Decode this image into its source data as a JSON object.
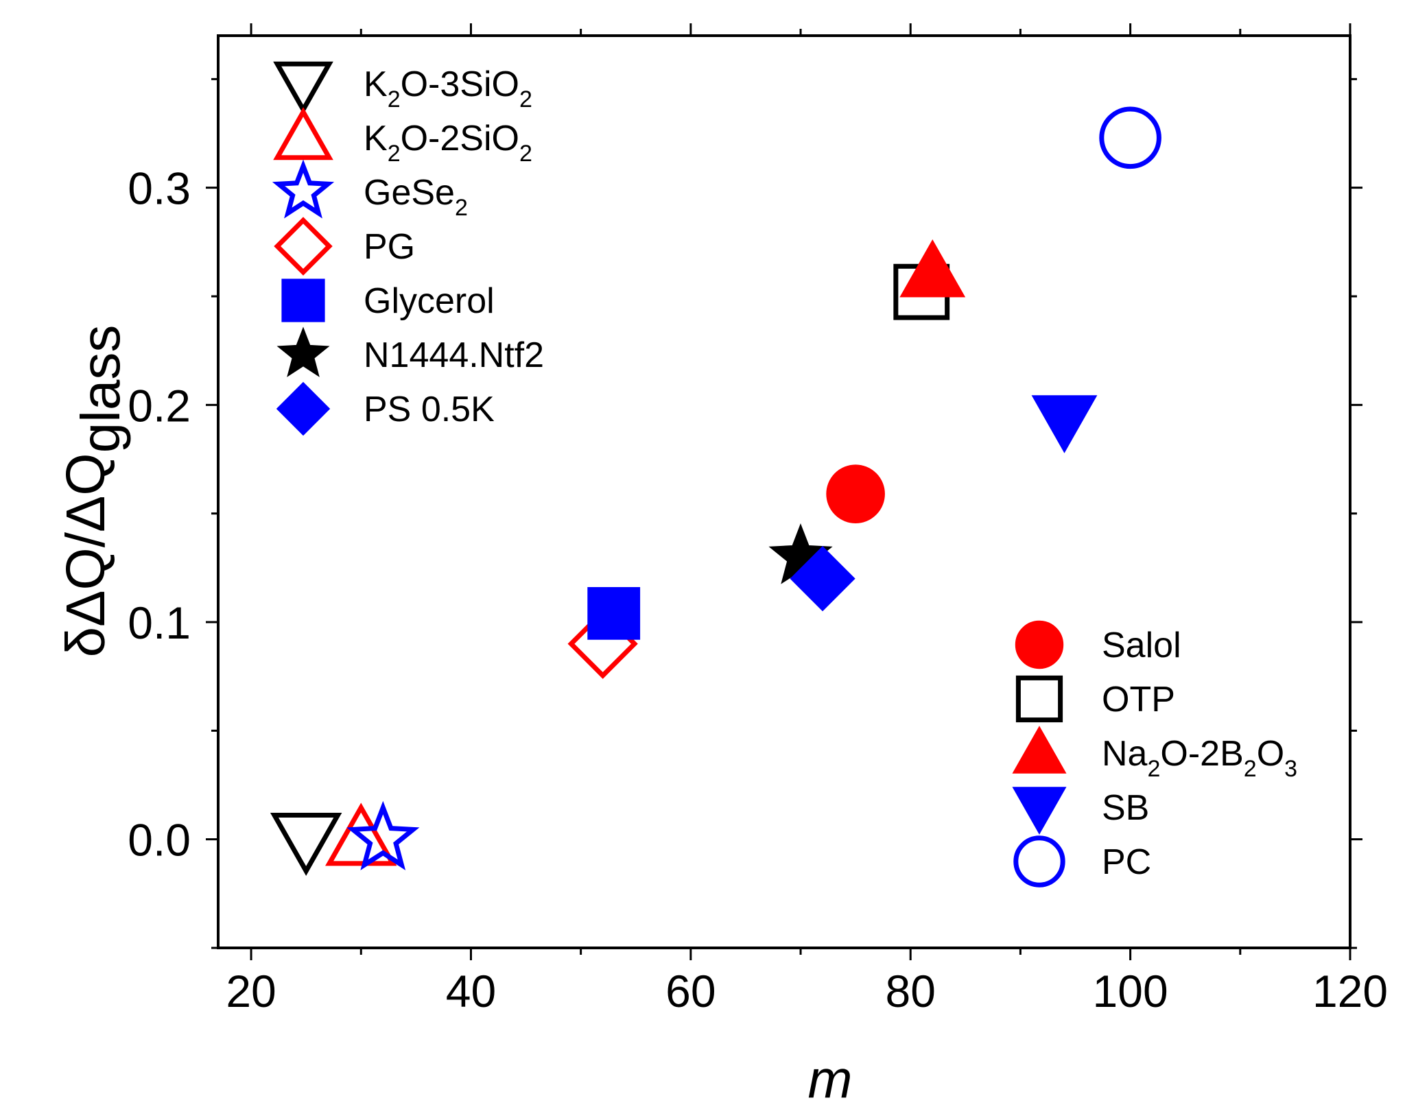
{
  "chart_data": {
    "type": "scatter",
    "xlabel": "m",
    "ylabel": "δΔQ/ΔQ",
    "ylabel_subscript": "glass",
    "xlim": [
      17,
      120
    ],
    "ylim": [
      -0.05,
      0.37
    ],
    "grid": false,
    "x_ticks": [
      20,
      40,
      60,
      80,
      100,
      120
    ],
    "x_tick_labels": [
      "20",
      "40",
      "60",
      "80",
      "100",
      "120"
    ],
    "x_minor_ticks": [
      30,
      50,
      70,
      90,
      110
    ],
    "y_ticks": [
      0.0,
      0.1,
      0.2,
      0.3
    ],
    "y_tick_labels": [
      "0.0",
      "0.1",
      "0.2",
      "0.3"
    ],
    "y_minor_ticks": [
      -0.05,
      0.05,
      0.15,
      0.25,
      0.35
    ],
    "series": [
      {
        "key": "k2o3sio2",
        "name": "K2O-3SiO2",
        "label_parts": [
          [
            "K",
            ""
          ],
          [
            "2",
            "sub"
          ],
          [
            "O-3SiO",
            ""
          ],
          [
            "2",
            "sub"
          ]
        ],
        "marker": "triangle-down",
        "fill": "none",
        "color": "#000000",
        "legend": "left",
        "points": [
          {
            "x": 25,
            "y": 0.0
          }
        ]
      },
      {
        "key": "k2o2sio2",
        "name": "K2O-2SiO2",
        "label_parts": [
          [
            "K",
            ""
          ],
          [
            "2",
            "sub"
          ],
          [
            "O-2SiO",
            ""
          ],
          [
            "2",
            "sub"
          ]
        ],
        "marker": "triangle-up",
        "fill": "none",
        "color": "#ff0000",
        "legend": "left",
        "points": [
          {
            "x": 30,
            "y": 0.0
          }
        ]
      },
      {
        "key": "gese2",
        "name": "GeSe2",
        "label_parts": [
          [
            "GeSe",
            ""
          ],
          [
            "2",
            "sub"
          ]
        ],
        "marker": "star",
        "fill": "none",
        "color": "#0000ff",
        "legend": "left",
        "points": [
          {
            "x": 32,
            "y": 0.0
          }
        ]
      },
      {
        "key": "pg",
        "name": "PG",
        "label_parts": [
          [
            "PG",
            ""
          ]
        ],
        "marker": "diamond",
        "fill": "none",
        "color": "#ff0000",
        "legend": "left",
        "points": [
          {
            "x": 52,
            "y": 0.09
          }
        ]
      },
      {
        "key": "glycerol",
        "name": "Glycerol",
        "label_parts": [
          [
            "Glycerol",
            ""
          ]
        ],
        "marker": "square",
        "fill": "filled",
        "color": "#0000ff",
        "legend": "left",
        "points": [
          {
            "x": 53,
            "y": 0.104
          }
        ]
      },
      {
        "key": "n1444",
        "name": "N1444.Ntf2",
        "label_parts": [
          [
            "N1444.Ntf2",
            ""
          ]
        ],
        "marker": "star",
        "fill": "filled",
        "color": "#000000",
        "legend": "left",
        "points": [
          {
            "x": 70,
            "y": 0.13
          }
        ]
      },
      {
        "key": "ps05k",
        "name": "PS 0.5K",
        "label_parts": [
          [
            "PS 0.5K",
            ""
          ]
        ],
        "marker": "diamond",
        "fill": "filled",
        "color": "#0000ff",
        "legend": "left",
        "points": [
          {
            "x": 72,
            "y": 0.12
          }
        ]
      },
      {
        "key": "salol",
        "name": "Salol",
        "label_parts": [
          [
            "Salol",
            ""
          ]
        ],
        "marker": "circle",
        "fill": "filled",
        "color": "#ff0000",
        "legend": "right",
        "points": [
          {
            "x": 75,
            "y": 0.159
          }
        ]
      },
      {
        "key": "otp",
        "name": "OTP",
        "label_parts": [
          [
            "OTP",
            ""
          ]
        ],
        "marker": "square",
        "fill": "none",
        "color": "#000000",
        "legend": "right",
        "points": [
          {
            "x": 81,
            "y": 0.252
          }
        ]
      },
      {
        "key": "na2o2b2o3",
        "name": "Na2O-2B2O3",
        "label_parts": [
          [
            "Na",
            ""
          ],
          [
            "2",
            "sub"
          ],
          [
            "O-2B",
            ""
          ],
          [
            "2",
            "sub"
          ],
          [
            "O",
            ""
          ],
          [
            "3",
            "sub"
          ]
        ],
        "marker": "triangle-up",
        "fill": "filled",
        "color": "#ff0000",
        "legend": "right",
        "points": [
          {
            "x": 82,
            "y": 0.261
          }
        ]
      },
      {
        "key": "sb",
        "name": "SB",
        "label_parts": [
          [
            "SB",
            ""
          ]
        ],
        "marker": "triangle-down",
        "fill": "filled",
        "color": "#0000ff",
        "legend": "right",
        "points": [
          {
            "x": 94,
            "y": 0.193
          }
        ]
      },
      {
        "key": "pc",
        "name": "PC",
        "label_parts": [
          [
            " PC",
            ""
          ]
        ],
        "marker": "circle",
        "fill": "none",
        "color": "#0000ff",
        "legend": "right",
        "points": [
          {
            "x": 100,
            "y": 0.323
          }
        ]
      }
    ]
  }
}
